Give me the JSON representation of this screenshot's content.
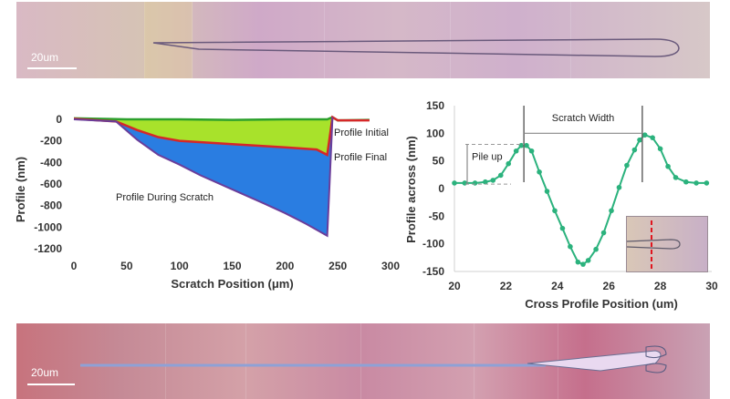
{
  "images": {
    "top_scale_label": "20um",
    "bottom_scale_label": "20um"
  },
  "chart_data": [
    {
      "type": "area",
      "xlabel": "Scratch Position (μm)",
      "ylabel": "Profile (nm)",
      "xlim": [
        0,
        300
      ],
      "ylim": [
        -1200,
        50
      ],
      "xticks": [
        "0",
        "50",
        "100",
        "150",
        "200",
        "250",
        "300"
      ],
      "yticks": [
        "0",
        "-200",
        "-400",
        "-600",
        "-800",
        "-1000",
        "-1200"
      ],
      "grid": false,
      "colors": {
        "initial": "#2ca02c",
        "final": "#d62728",
        "during": "#6a3d9a",
        "fill_final": "#a8e22b",
        "fill_during": "#2a7de1"
      },
      "annotations": [
        "Profile Initial",
        "Profile Final",
        "Profile During Scratch"
      ],
      "series": [
        {
          "name": "Profile Initial",
          "x": [
            0,
            50,
            100,
            150,
            200,
            240,
            245,
            250,
            280
          ],
          "y": [
            10,
            0,
            0,
            -5,
            0,
            0,
            20,
            -10,
            -5
          ]
        },
        {
          "name": "Profile Final",
          "x": [
            0,
            40,
            60,
            80,
            100,
            150,
            200,
            230,
            240,
            245,
            250,
            280
          ],
          "y": [
            5,
            -20,
            -100,
            -165,
            -200,
            -230,
            -260,
            -280,
            -330,
            20,
            -10,
            -10
          ]
        },
        {
          "name": "Profile During Scratch",
          "x": [
            0,
            40,
            60,
            80,
            100,
            120,
            150,
            180,
            200,
            220,
            240,
            242,
            245
          ],
          "y": [
            0,
            -20,
            -190,
            -330,
            -420,
            -520,
            -650,
            -780,
            -870,
            -970,
            -1080,
            -650,
            20
          ]
        }
      ]
    },
    {
      "type": "line",
      "xlabel": "Cross Profile Position (um)",
      "ylabel": "Profile across (nm)",
      "xlim": [
        20,
        30
      ],
      "ylim": [
        -150,
        150
      ],
      "xticks": [
        "20",
        "22",
        "24",
        "26",
        "28",
        "30"
      ],
      "yticks": [
        "150",
        "100",
        "50",
        "0",
        "-50",
        "-100",
        "-150"
      ],
      "grid": false,
      "color": "#2bb27d",
      "annotations": [
        "Scratch Width",
        "Pile up"
      ],
      "series": [
        {
          "name": "",
          "x": [
            20,
            20.4,
            20.8,
            21.2,
            21.5,
            21.8,
            22.1,
            22.4,
            22.6,
            22.8,
            23.0,
            23.3,
            23.6,
            23.9,
            24.2,
            24.5,
            24.8,
            25.0,
            25.2,
            25.5,
            25.8,
            26.1,
            26.4,
            26.7,
            27.0,
            27.2,
            27.4,
            27.7,
            28.0,
            28.3,
            28.6,
            29.0,
            29.4,
            29.8
          ],
          "y": [
            10,
            10,
            10,
            12,
            15,
            24,
            45,
            68,
            78,
            78,
            68,
            30,
            -5,
            -40,
            -72,
            -105,
            -133,
            -137,
            -130,
            -110,
            -80,
            -40,
            2,
            42,
            70,
            88,
            97,
            92,
            72,
            40,
            20,
            12,
            10,
            10
          ]
        }
      ]
    }
  ]
}
